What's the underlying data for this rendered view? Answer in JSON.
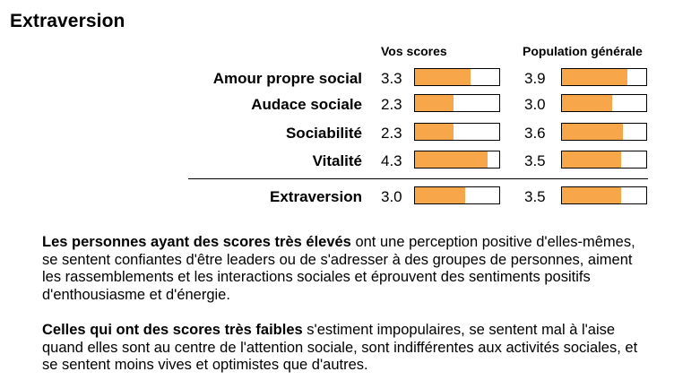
{
  "title": "Extraversion",
  "columns": {
    "you": "Vos scores",
    "population": "Population générale"
  },
  "scale_max": 5,
  "facets": [
    {
      "label": "Amour propre social",
      "you": "3.3",
      "population": "3.9"
    },
    {
      "label": "Audace sociale",
      "you": "2.3",
      "population": "3.0"
    },
    {
      "label": "Sociabilité",
      "you": "2.3",
      "population": "3.6"
    },
    {
      "label": "Vitalité",
      "you": "4.3",
      "population": "3.5"
    }
  ],
  "total": {
    "label": "Extraversion",
    "you": "3.0",
    "population": "3.5"
  },
  "high_text": {
    "bold": "Les personnes ayant des scores très élevés",
    "rest": " ont une perception positive d'elles-mêmes, se sentent confiantes d'être leaders ou de s'adresser à des groupes de personnes, aiment les rassemblements et les interactions sociales et éprouvent des sentiments positifs d'enthousiasme et d'énergie."
  },
  "low_text": {
    "bold": "Celles qui ont des scores très faibles",
    "rest": " s'estiment impopulaires, se sentent mal à l'aise quand elles sont au centre de l'attention sociale, sont indifférentes aux activités sociales, et se sentent moins vives et optimistes que d'autres."
  },
  "colors": {
    "bar_fill": "#f7a74a",
    "bar_border": "#000000"
  }
}
